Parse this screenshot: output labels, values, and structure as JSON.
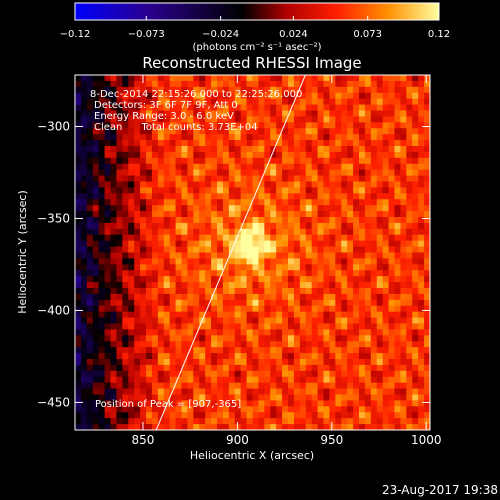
{
  "chart_data": {
    "type": "heatmap",
    "title": "Reconstructed RHESSI Image",
    "xlabel": "Heliocentric X (arcsec)",
    "ylabel": "Heliocentric Y (arcsec)",
    "xlim": [
      814,
      1002
    ],
    "ylim": [
      -465,
      -272
    ],
    "x_ticks": [
      850,
      900,
      950,
      1000
    ],
    "x_tick_labels": [
      "850",
      "900",
      "950",
      "1000"
    ],
    "y_ticks": [
      -300,
      -350,
      -400,
      -450
    ],
    "y_tick_labels": [
      "−300",
      "−350",
      "−400",
      "−450"
    ],
    "colorbar": {
      "min": -0.12,
      "max": 0.12,
      "ticks": [
        -0.12,
        -0.073,
        -0.024,
        0.024,
        0.073,
        0.12
      ],
      "tick_labels": [
        "−0.12",
        "−0.073",
        "−0.024",
        "0.024",
        "0.073",
        "0.12"
      ],
      "label": "(photons cm⁻² s⁻¹ asec⁻²)"
    },
    "annotations": [
      " 8-Dec-2014 22:15:26.000 to 22:25:26.000",
      "Detectors: 3F 6F 7F 9F, Att 0",
      "Energy Range: 3.0 - 6.0 keV",
      "Clean      Total counts: 3.73E+04"
    ],
    "peak_label": "Position of Peak = [907,-365]",
    "peak": [
      907,
      -365
    ],
    "limb_line": [
      [
        857,
        -465
      ],
      [
        936,
        -272
      ]
    ],
    "colormap": [
      "#0000ff",
      "#2a0090",
      "#000000",
      "#b00000",
      "#ff2000",
      "#ff9000",
      "#ffffa0"
    ]
  },
  "footer": {
    "timestamp": "23-Aug-2017 19:38"
  }
}
